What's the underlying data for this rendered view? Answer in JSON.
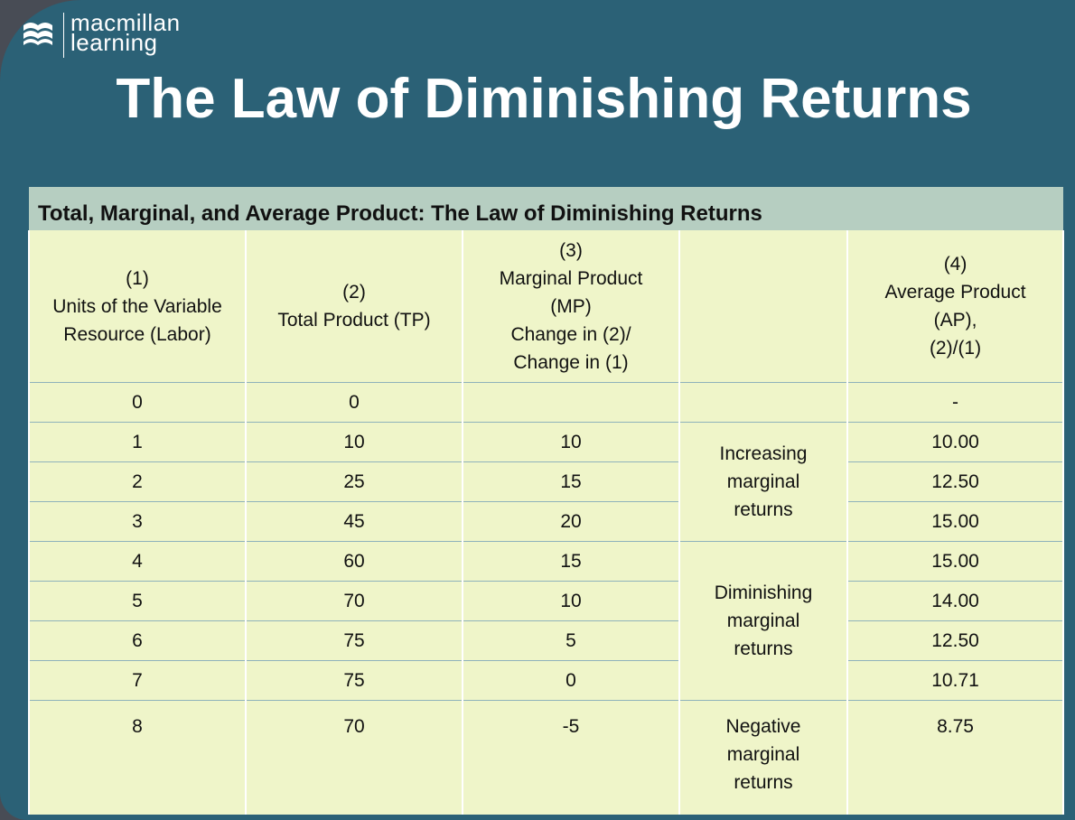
{
  "logo": {
    "line1": "macmillan",
    "line2": "learning"
  },
  "title": "The Law of Diminishing Returns",
  "table": {
    "caption": "Total, Marginal, and Average Product: The Law of Diminishing Returns",
    "headers": [
      [
        "(1)",
        "Units of the Variable",
        "Resource (Labor)"
      ],
      [
        "(2)",
        "Total Product (TP)"
      ],
      [
        "(3)",
        "Marginal Product",
        "(MP)",
        "Change in (2)/",
        "Change in (1)"
      ],
      [],
      [
        "(4)",
        "Average Product",
        "(AP),",
        "(2)/(1)"
      ]
    ],
    "rows": [
      {
        "units": "0",
        "tp": "0",
        "mp": "",
        "ap": "-"
      },
      {
        "units": "1",
        "tp": "10",
        "mp": "10",
        "ap": "10.00"
      },
      {
        "units": "2",
        "tp": "25",
        "mp": "15",
        "ap": "12.50"
      },
      {
        "units": "3",
        "tp": "45",
        "mp": "20",
        "ap": "15.00"
      },
      {
        "units": "4",
        "tp": "60",
        "mp": "15",
        "ap": "15.00"
      },
      {
        "units": "5",
        "tp": "70",
        "mp": "10",
        "ap": "14.00"
      },
      {
        "units": "6",
        "tp": "75",
        "mp": "5",
        "ap": "12.50"
      },
      {
        "units": "7",
        "tp": "75",
        "mp": "0",
        "ap": "10.71"
      },
      {
        "units": "8",
        "tp": "70",
        "mp": "-5",
        "ap": "8.75"
      }
    ],
    "phases": [
      [
        "Increasing",
        "marginal",
        "returns"
      ],
      [
        "Diminishing",
        "marginal",
        "returns"
      ],
      [
        "Negative",
        "marginal",
        "returns"
      ]
    ]
  }
}
